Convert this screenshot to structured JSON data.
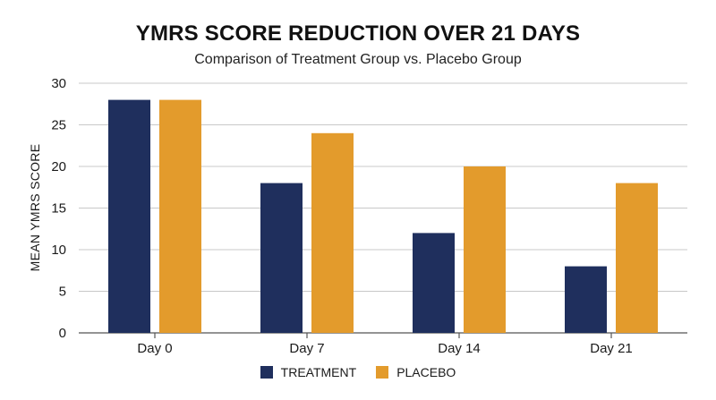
{
  "colors": {
    "treatment": "#1f2f5d",
    "placebo": "#e39b2c",
    "grid": "#c8c8c8",
    "axis": "#555555"
  },
  "chart_data": {
    "type": "bar",
    "title": "YMRS SCORE REDUCTION OVER 21 DAYS",
    "subtitle": "Comparison of Treatment Group vs. Placebo Group",
    "xlabel": "",
    "ylabel": "MEAN YMRS SCORE",
    "ylim": [
      0,
      30
    ],
    "yticks": [
      0,
      5,
      10,
      15,
      20,
      25,
      30
    ],
    "grid": true,
    "legend_position": "bottom",
    "categories": [
      "Day 0",
      "Day 7",
      "Day 14",
      "Day 21"
    ],
    "series": [
      {
        "name": "TREATMENT",
        "values": [
          28,
          18,
          12,
          8
        ]
      },
      {
        "name": "PLACEBO",
        "values": [
          28,
          24,
          20,
          18
        ]
      }
    ]
  }
}
